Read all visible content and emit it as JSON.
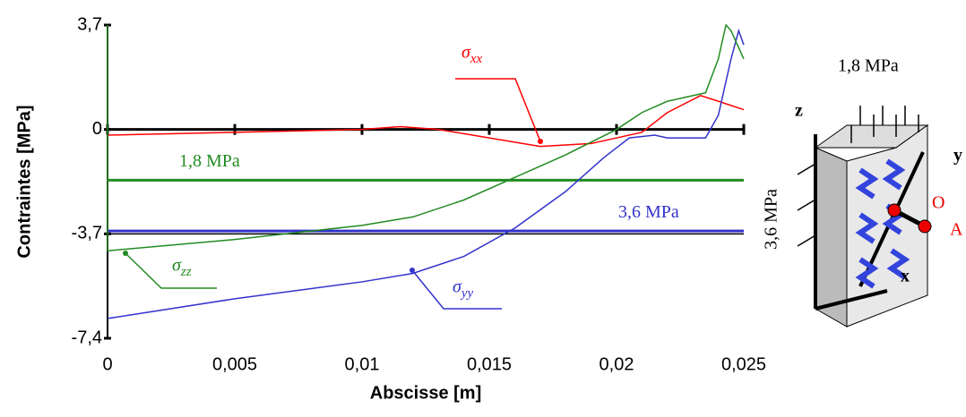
{
  "chart_data": {
    "type": "line",
    "xlabel": "Abscisse [m]",
    "ylabel": "Contraintes [MPa]",
    "xlim": [
      0,
      0.025
    ],
    "ylim": [
      -7.4,
      3.7
    ],
    "xticks": [
      0,
      {
        "value": 0.005,
        "label": "0,005"
      },
      {
        "value": 0.01,
        "label": "0,01"
      },
      {
        "value": 0.015,
        "label": "0,015"
      },
      {
        "value": 0.02,
        "label": "0,02"
      },
      {
        "value": 0.025,
        "label": "0,025"
      }
    ],
    "yticks": [
      {
        "value": 3.7,
        "label": "3,7"
      },
      0,
      {
        "value": -3.7,
        "label": "-3,7"
      },
      {
        "value": -7.4,
        "label": "-7,4"
      }
    ],
    "series": [
      {
        "name": "σxx",
        "color": "#ff0000",
        "x": [
          0,
          0.005,
          0.01,
          0.0115,
          0.013,
          0.015,
          0.017,
          0.019,
          0.021,
          0.022,
          0.0233,
          0.024,
          0.025
        ],
        "values": [
          -0.2,
          -0.1,
          0,
          0.1,
          0,
          -0.3,
          -0.6,
          -0.5,
          -0.1,
          0.6,
          1.2,
          1.0,
          0.7
        ]
      },
      {
        "name": "σyy",
        "color": "#3333cc",
        "x": [
          0,
          0.005,
          0.01,
          0.012,
          0.014,
          0.016,
          0.018,
          0.0195,
          0.0205,
          0.0215,
          0.022,
          0.0235,
          0.024,
          0.0245,
          0.0248,
          0.025
        ],
        "values": [
          -6.7,
          -6.0,
          -5.4,
          -5.1,
          -4.5,
          -3.5,
          -2.2,
          -1.0,
          -0.3,
          -0.2,
          -0.3,
          -0.3,
          0.5,
          2.5,
          3.5,
          3.0
        ]
      },
      {
        "name": "σzz",
        "color": "#228b22",
        "x": [
          0,
          0,
          0.005,
          0.008,
          0.01,
          0.012,
          0.014,
          0.016,
          0.018,
          0.02,
          0.021,
          0.022,
          0.0235,
          0.024,
          0.0243,
          0.0245,
          0.025
        ],
        "values": [
          3.7,
          -4.3,
          -3.9,
          -3.6,
          -3.4,
          -3.1,
          -2.5,
          -1.7,
          -0.9,
          0.0,
          0.6,
          1.0,
          1.3,
          2.5,
          3.7,
          3.5,
          2.5
        ]
      }
    ],
    "reference_lines": [
      {
        "value": -1.8,
        "label": "1,8 MPa",
        "color": "#228b22"
      },
      {
        "value": -3.6,
        "label": "3,6 MPa",
        "color": "#3333cc"
      }
    ]
  },
  "diagram": {
    "top_load": "1,8 MPa",
    "side_load": "3,6 MPa",
    "axis_z": "z",
    "axis_y": "y",
    "axis_x": "x",
    "point_o": "O",
    "point_a": "A"
  }
}
